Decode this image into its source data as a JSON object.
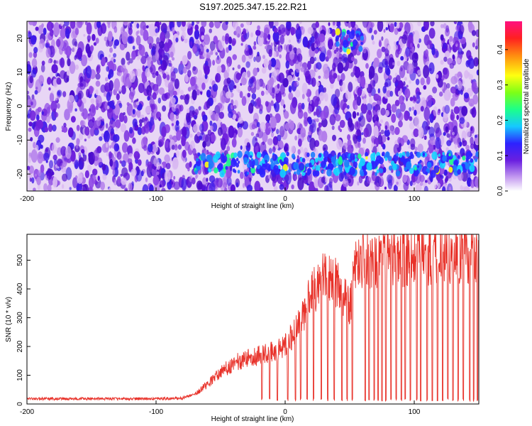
{
  "figure": {
    "title": "S197.2025.347.15.22.R21"
  },
  "colors": {
    "snr_line": "#e8322a",
    "axis": "#000000",
    "colormap": [
      "#f2d9f5",
      "#c59cf0",
      "#8a3fe8",
      "#5a10d8",
      "#2d22ff",
      "#1c7cff",
      "#16d2ff",
      "#1cff8a",
      "#7dff16",
      "#ffff10",
      "#ffb010",
      "#ff4a10",
      "#ff1080"
    ]
  },
  "chart_data": [
    {
      "type": "heatmap",
      "title": "S197.2025.347.15.22.R21",
      "xlabel": "Height of straight line (km)",
      "ylabel": "Frequency (Hz)",
      "xlim": [
        -200,
        150
      ],
      "ylim": [
        -25,
        25
      ],
      "x_ticks": [
        -200,
        -100,
        0,
        100
      ],
      "y_ticks": [
        -20,
        -10,
        0,
        10,
        20
      ],
      "colorbar": {
        "label": "Normalized spectral amplitude",
        "range": [
          0,
          0.48
        ],
        "ticks": [
          0.0,
          0.1,
          0.2,
          0.3,
          0.4
        ]
      },
      "features": [
        {
          "description_band": "enhanced",
          "frequency_hz": -17,
          "x_range": [
            -70,
            150
          ]
        },
        {
          "description_band": "enhanced",
          "frequency_hz": 19,
          "x_range": [
            40,
            60
          ]
        }
      ]
    },
    {
      "type": "line",
      "xlabel": "Height of straight line (km)",
      "ylabel": "SNR (10 * v/v)",
      "xlim": [
        -200,
        150
      ],
      "ylim": [
        0,
        590
      ],
      "x_ticks": [
        -200,
        -100,
        0,
        100
      ],
      "y_ticks": [
        0,
        100,
        200,
        300,
        400,
        500
      ],
      "series_envelope": {
        "x": [
          -200,
          -150,
          -100,
          -80,
          -70,
          -60,
          -50,
          -40,
          -30,
          -20,
          -10,
          0,
          10,
          20,
          30,
          40,
          50,
          55,
          60,
          80,
          100,
          120,
          140,
          150
        ],
        "y": [
          18,
          18,
          18,
          20,
          35,
          70,
          110,
          140,
          160,
          170,
          180,
          200,
          270,
          380,
          440,
          420,
          340,
          480,
          500,
          510,
          515,
          520,
          525,
          525
        ]
      },
      "dropouts_to_baseline_x": [
        -18,
        -12,
        -6,
        2,
        8,
        12,
        17,
        22,
        28,
        33,
        38,
        44,
        48,
        52,
        62,
        65,
        69,
        72,
        75,
        78,
        82,
        86,
        90,
        93,
        97,
        102,
        105,
        110,
        114,
        118,
        122,
        126,
        130,
        134,
        138,
        143,
        146,
        149
      ]
    }
  ]
}
